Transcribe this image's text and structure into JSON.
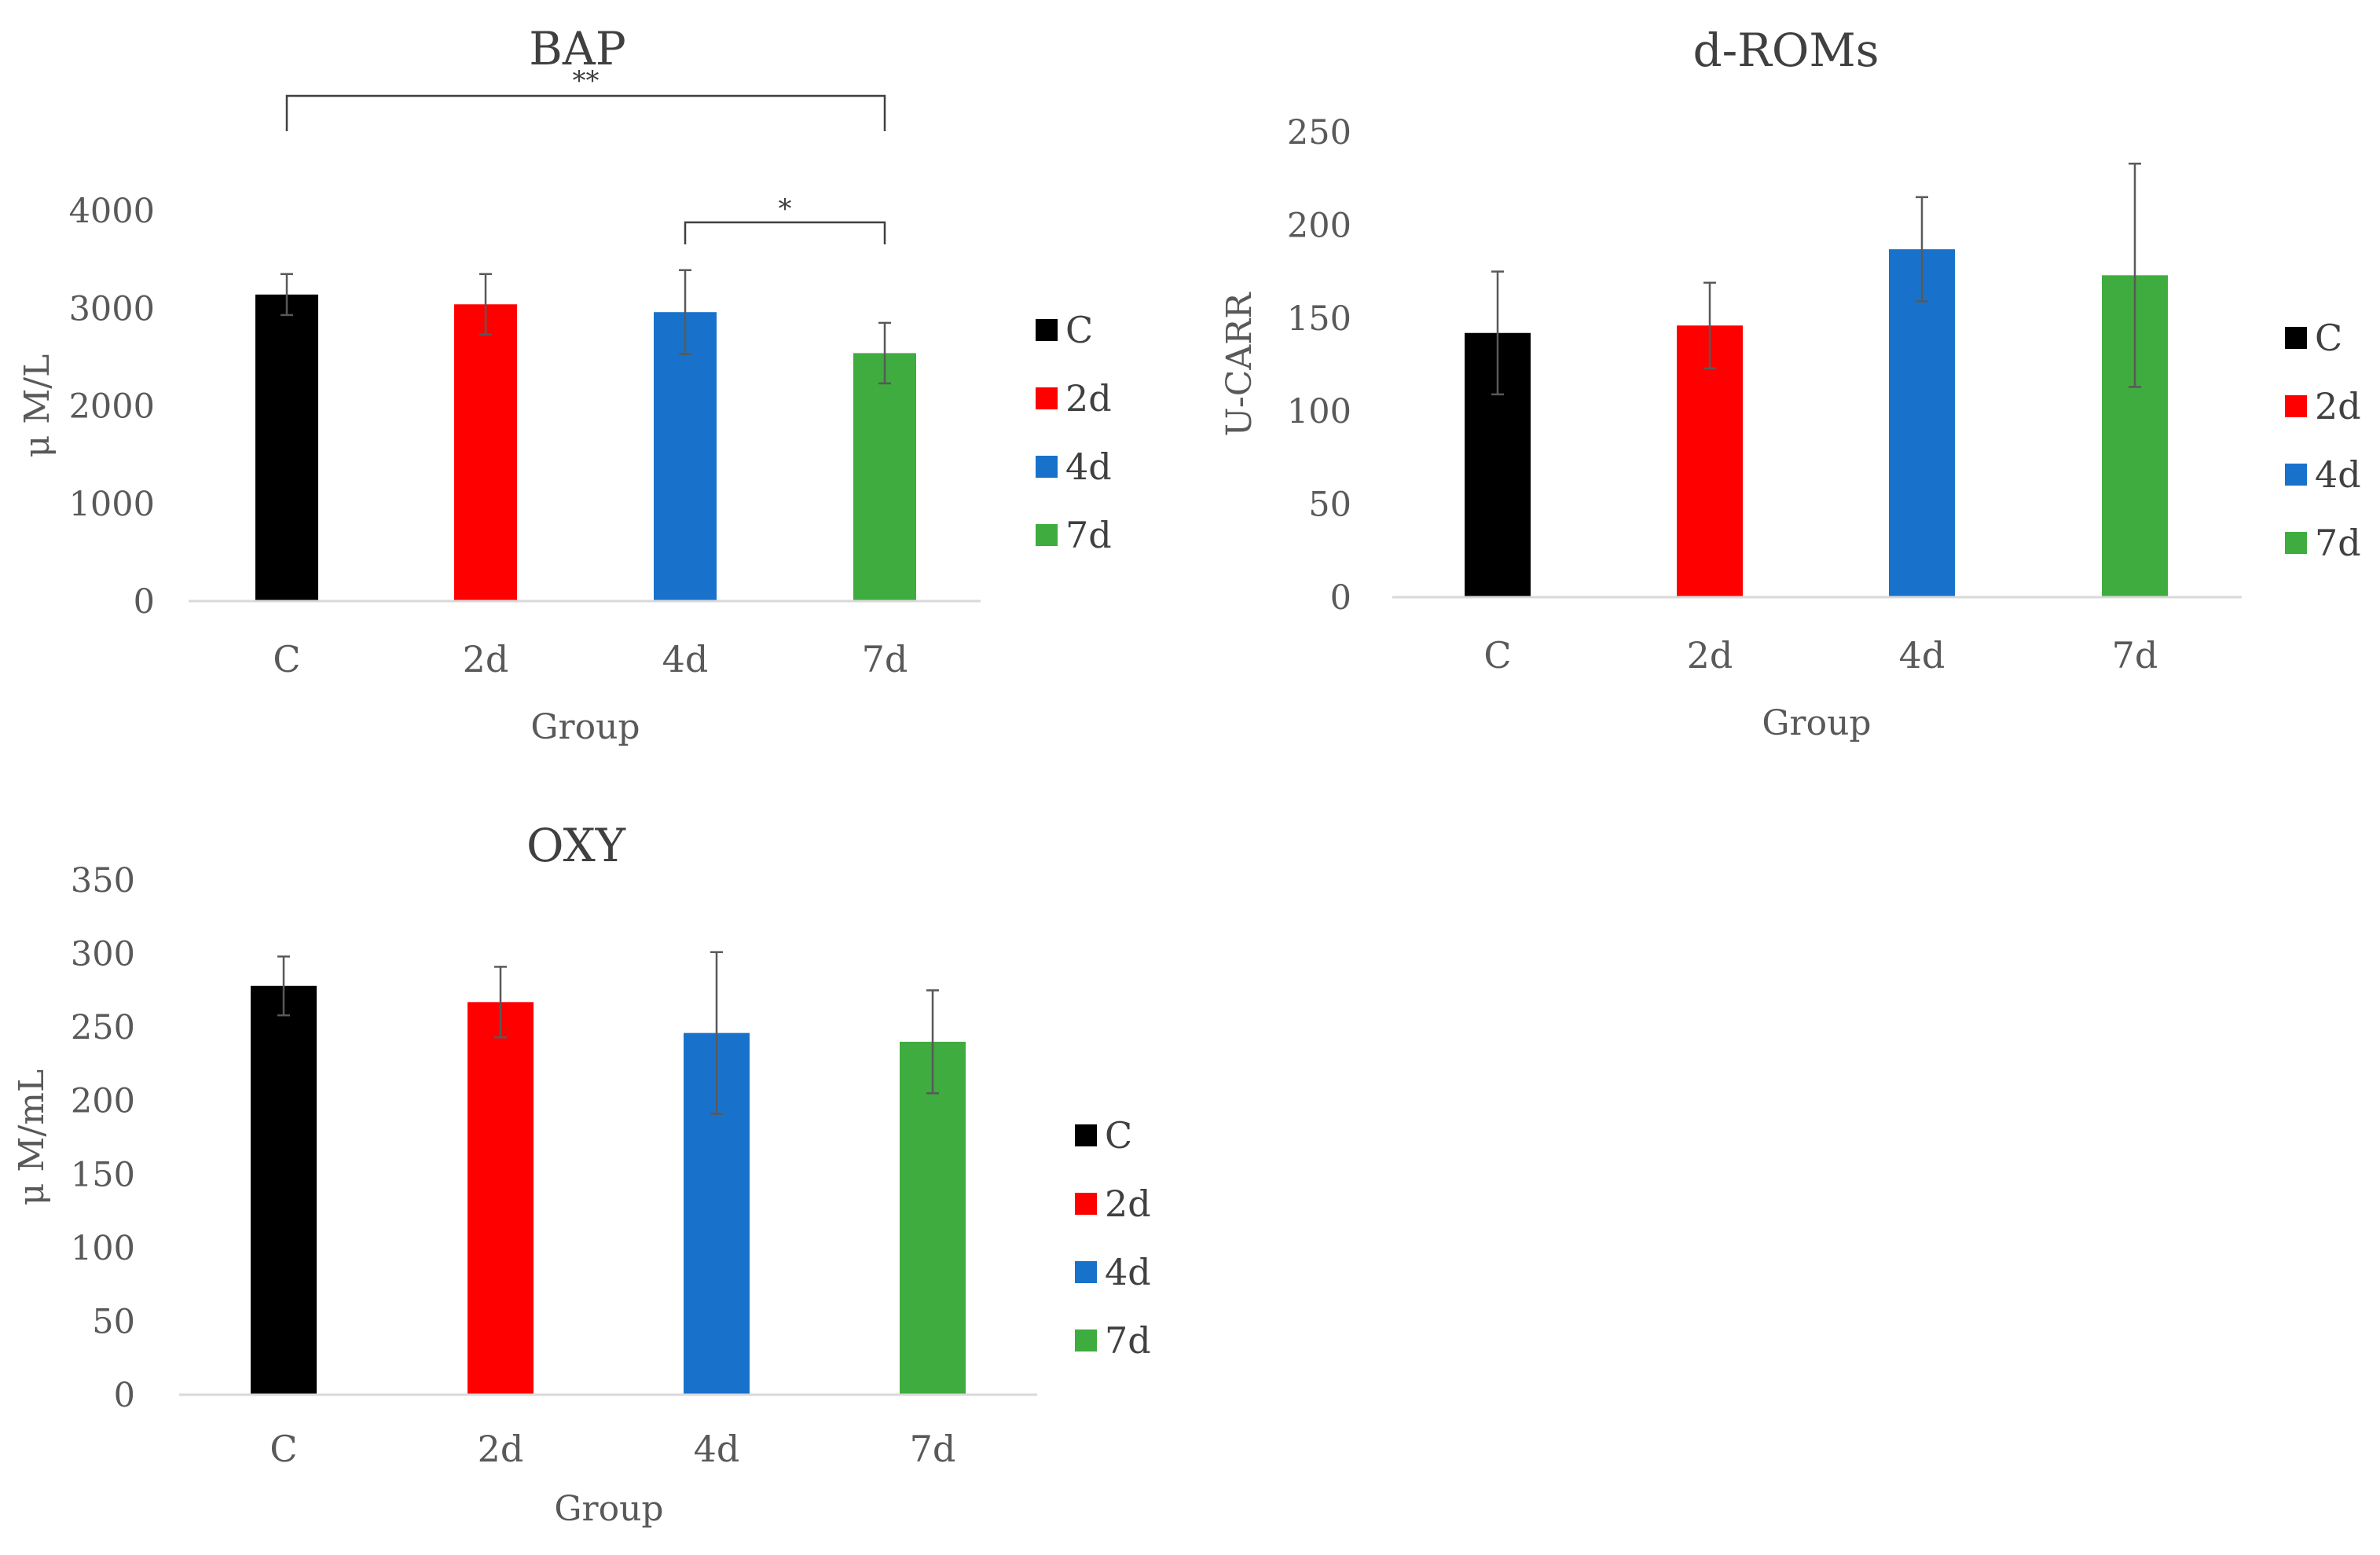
{
  "colors": {
    "C": "#000000",
    "2d": "#ff0000",
    "4d": "#1872cc",
    "7d": "#3fac3f",
    "axis": "#d9d9d9",
    "error": "#595959",
    "bracket": "#404040"
  },
  "chart_data": [
    {
      "type": "bar",
      "title": "BAP",
      "xlabel": "Group",
      "ylabel": "μ M/L",
      "categories": [
        "C",
        "2d",
        "4d",
        "7d"
      ],
      "values": [
        3140,
        3040,
        2960,
        2540
      ],
      "errors": [
        210,
        310,
        430,
        310
      ],
      "ylim": [
        0,
        4000
      ],
      "yticks": [
        0,
        1000,
        2000,
        3000,
        4000
      ],
      "legend": [
        "C",
        "2d",
        "4d",
        "7d"
      ],
      "legend_position": "right",
      "grid": false,
      "annotations": [
        {
          "from": "C",
          "to": "7d",
          "label": "**"
        },
        {
          "from": "4d",
          "to": "7d",
          "label": "*"
        }
      ]
    },
    {
      "type": "bar",
      "title": "d-ROMs",
      "xlabel": "Group",
      "ylabel": "U-CARR",
      "categories": [
        "C",
        "2d",
        "4d",
        "7d"
      ],
      "values": [
        142,
        146,
        187,
        173
      ],
      "errors": [
        33,
        23,
        28,
        60
      ],
      "ylim": [
        0,
        250
      ],
      "yticks": [
        0,
        50,
        100,
        150,
        200,
        250
      ],
      "legend": [
        "C",
        "2d",
        "4d",
        "7d"
      ],
      "legend_position": "right",
      "grid": false,
      "annotations": []
    },
    {
      "type": "bar",
      "title": "OXY",
      "xlabel": "Group",
      "ylabel": "μ M/mL",
      "categories": [
        "C",
        "2d",
        "4d",
        "7d"
      ],
      "values": [
        278,
        267,
        246,
        240
      ],
      "errors": [
        20,
        24,
        55,
        35
      ],
      "ylim": [
        0,
        350
      ],
      "yticks": [
        0,
        50,
        100,
        150,
        200,
        250,
        300,
        350
      ],
      "legend": [
        "C",
        "2d",
        "4d",
        "7d"
      ],
      "legend_position": "right",
      "grid": false,
      "annotations": []
    }
  ]
}
